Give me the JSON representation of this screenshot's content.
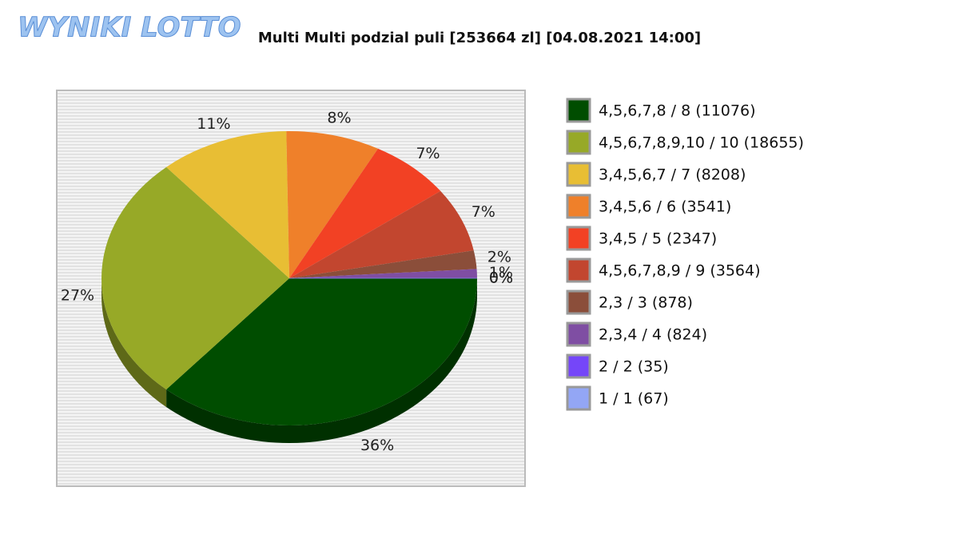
{
  "logo": "WYNIKI LOTTO",
  "chart_data": {
    "type": "pie",
    "title": "Multi Multi podzial puli [253664 zl] [04.08.2021 14:00]",
    "categories": [
      "4,5,6,7,8 / 8 (11076)",
      "4,5,6,7,8,9,10 / 10 (18655)",
      "3,4,5,6,7 / 7 (8208)",
      "3,4,5,6 / 6 (3541)",
      "3,4,5 / 5 (2347)",
      "4,5,6,7,8,9 / 9 (3564)",
      "2,3 / 3 (878)",
      "2,3,4 / 4 (824)",
      "2 / 2 (35)",
      "1 / 1 (67)"
    ],
    "values": [
      36,
      27,
      11,
      8,
      7,
      7,
      2,
      1,
      0,
      0
    ],
    "value_labels": [
      "36%",
      "27%",
      "11%",
      "8%",
      "7%",
      "7%",
      "2%",
      "1%",
      "0%",
      "0%"
    ],
    "colors": [
      "#004d00",
      "#97a927",
      "#e8be34",
      "#ef802a",
      "#f24124",
      "#c2462f",
      "#8b4e3a",
      "#7f4ea3",
      "#7546f9",
      "#93a6f5"
    ],
    "legend": "right"
  }
}
